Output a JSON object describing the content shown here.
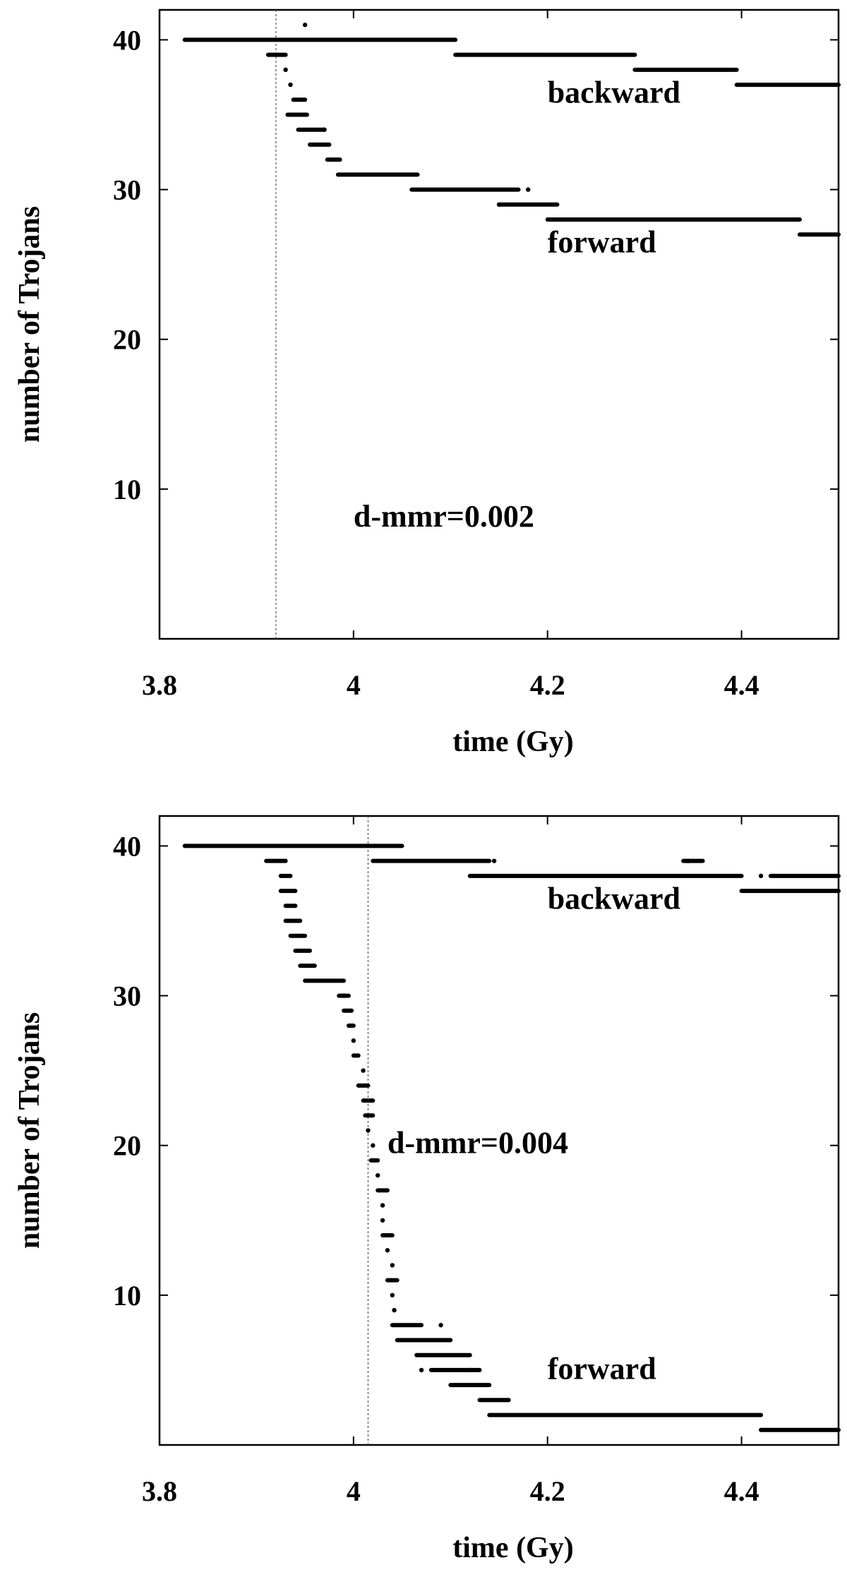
{
  "chart_data": [
    {
      "type": "scatter",
      "xlabel": "time (Gy)",
      "ylabel": "number of Trojans",
      "xlim": [
        3.8,
        4.5
      ],
      "ylim": [
        0,
        42
      ],
      "xticks": [
        "3.8",
        "4",
        "4.2",
        "4.4"
      ],
      "xtick_values": [
        3.8,
        4.0,
        4.2,
        4.4
      ],
      "yticks": [
        "10",
        "20",
        "30",
        "40"
      ],
      "ytick_values": [
        10,
        20,
        30,
        40
      ],
      "vline_x": 3.92,
      "annotations": [
        {
          "text": "backward",
          "x": 4.2,
          "y": 35.8
        },
        {
          "text": "forward",
          "x": 4.2,
          "y": 25.8
        },
        {
          "text": "d-mmr=0.002",
          "x": 4.0,
          "y": 7.5
        }
      ],
      "series": [
        {
          "label": "backward",
          "segments": [
            [
              3.826,
              4.105,
              40
            ],
            [
              4.105,
              4.29,
              39
            ],
            [
              4.29,
              4.395,
              38
            ],
            [
              4.395,
              4.5,
              37
            ]
          ],
          "points": [
            [
              3.95,
              41
            ]
          ]
        },
        {
          "label": "forward",
          "segments": [
            [
              3.912,
              3.93,
              39
            ],
            [
              3.938,
              3.95,
              36
            ],
            [
              3.932,
              3.952,
              35
            ],
            [
              3.943,
              3.97,
              34
            ],
            [
              3.955,
              3.975,
              33
            ],
            [
              3.973,
              3.986,
              32
            ],
            [
              3.984,
              4.066,
              31
            ],
            [
              4.06,
              4.17,
              30
            ],
            [
              4.15,
              4.21,
              29
            ],
            [
              4.2,
              4.46,
              28
            ],
            [
              4.46,
              4.5,
              27
            ]
          ],
          "points": [
            [
              3.93,
              38
            ],
            [
              3.935,
              37
            ],
            [
              3.97,
              34
            ],
            [
              4.18,
              30
            ],
            [
              4.15,
              29
            ]
          ]
        }
      ]
    },
    {
      "type": "scatter",
      "xlabel": "time (Gy)",
      "ylabel": "number of Trojans",
      "xlim": [
        3.8,
        4.5
      ],
      "ylim": [
        0,
        42
      ],
      "xticks": [
        "3.8",
        "4",
        "4.2",
        "4.4"
      ],
      "xtick_values": [
        3.8,
        4.0,
        4.2,
        4.4
      ],
      "yticks": [
        "10",
        "20",
        "30",
        "40"
      ],
      "ytick_values": [
        10,
        20,
        30,
        40
      ],
      "vline_x": 4.015,
      "annotations": [
        {
          "text": "backward",
          "x": 4.2,
          "y": 35.8
        },
        {
          "text": "d-mmr=0.004",
          "x": 4.035,
          "y": 19.5
        },
        {
          "text": "forward",
          "x": 4.2,
          "y": 4.4
        }
      ],
      "series": [
        {
          "label": "backward",
          "segments": [
            [
              3.826,
              4.05,
              40
            ],
            [
              4.02,
              4.14,
              39
            ],
            [
              4.12,
              4.36,
              38
            ],
            [
              4.34,
              4.36,
              39
            ],
            [
              4.36,
              4.4,
              38
            ],
            [
              4.4,
              4.5,
              37
            ],
            [
              4.43,
              4.5,
              38
            ]
          ],
          "points": [
            [
              4.145,
              39
            ],
            [
              4.345,
              39
            ],
            [
              4.42,
              38
            ]
          ]
        },
        {
          "label": "forward",
          "segments": [
            [
              3.91,
              3.93,
              39
            ],
            [
              3.925,
              3.935,
              38
            ],
            [
              3.925,
              3.94,
              37
            ],
            [
              3.93,
              3.94,
              36
            ],
            [
              3.93,
              3.945,
              35
            ],
            [
              3.935,
              3.95,
              34
            ],
            [
              3.94,
              3.955,
              33
            ],
            [
              3.945,
              3.96,
              32
            ],
            [
              3.95,
              3.99,
              31
            ],
            [
              3.985,
              3.995,
              30
            ],
            [
              3.99,
              3.998,
              29
            ],
            [
              3.995,
              4.0,
              28
            ],
            [
              4.0,
              4.005,
              26
            ],
            [
              4.005,
              4.015,
              24
            ],
            [
              4.01,
              4.02,
              23
            ],
            [
              4.012,
              4.02,
              22
            ],
            [
              4.018,
              4.025,
              19
            ],
            [
              4.025,
              4.035,
              17
            ],
            [
              4.03,
              4.04,
              14
            ],
            [
              4.035,
              4.045,
              11
            ],
            [
              4.04,
              4.07,
              8
            ],
            [
              4.045,
              4.1,
              7
            ],
            [
              4.065,
              4.12,
              6
            ],
            [
              4.08,
              4.13,
              5
            ],
            [
              4.1,
              4.14,
              4
            ],
            [
              4.13,
              4.16,
              3
            ],
            [
              4.14,
              4.42,
              2
            ],
            [
              4.42,
              4.5,
              1
            ]
          ],
          "points": [
            [
              3.99,
              30
            ],
            [
              4.0,
              27
            ],
            [
              4.01,
              25
            ],
            [
              4.015,
              21
            ],
            [
              4.02,
              20
            ],
            [
              4.025,
              18
            ],
            [
              4.03,
              16
            ],
            [
              4.03,
              15
            ],
            [
              4.035,
              13
            ],
            [
              4.04,
              12
            ],
            [
              4.04,
              10
            ],
            [
              4.042,
              9
            ],
            [
              4.09,
              8
            ],
            [
              4.07,
              5
            ],
            [
              4.12,
              5
            ]
          ]
        }
      ]
    }
  ]
}
